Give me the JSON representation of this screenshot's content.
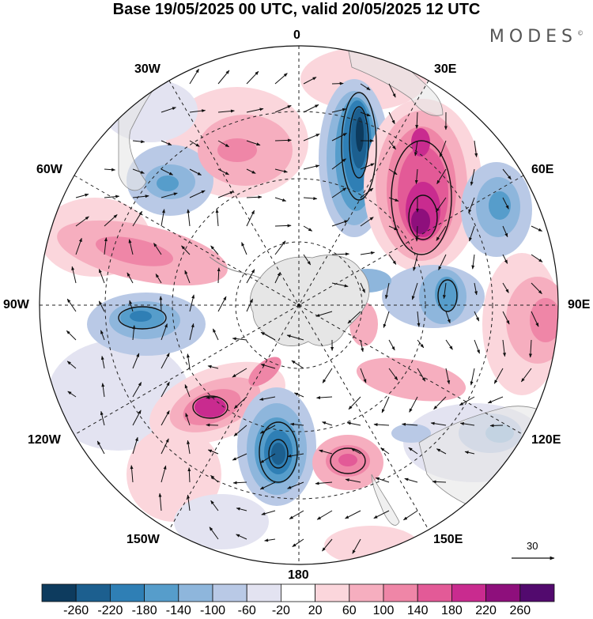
{
  "title": "Base 19/05/2025 00 UTC, valid 20/05/2025 12 UTC",
  "brand": {
    "text": "MODES",
    "mark": "©"
  },
  "map": {
    "projection": "polar-stereographic-south",
    "longitude_labels": {
      "lon_0": "0",
      "lon_30e": "30E",
      "lon_60e": "60E",
      "lon_90e": "90E",
      "lon_120e": "120E",
      "lon_150e": "150E",
      "lon_180": "180",
      "lon_150w": "150W",
      "lon_120w": "120W",
      "lon_90w": "90W",
      "lon_60w": "60W",
      "lon_30w": "30W"
    },
    "wind_reference_vector": "30",
    "colors": {
      "land": "#e6e6e6",
      "coast": "#777777",
      "vector": "#111111"
    }
  },
  "colorbar": {
    "colors": [
      "#0d3b5e",
      "#1c5f8f",
      "#2f7fb5",
      "#569dcb",
      "#8eb6dc",
      "#b9c9e6",
      "#e3e3f1",
      "#ffffff",
      "#fbd6dc",
      "#f6aebf",
      "#ef86a7",
      "#e35a97",
      "#c92b8f",
      "#8e0f7c",
      "#520a6e"
    ],
    "labels": [
      "-260",
      "-220",
      "-180",
      "-140",
      "-100",
      "-60",
      "-20",
      "20",
      "60",
      "100",
      "140",
      "180",
      "220",
      "260"
    ]
  }
}
